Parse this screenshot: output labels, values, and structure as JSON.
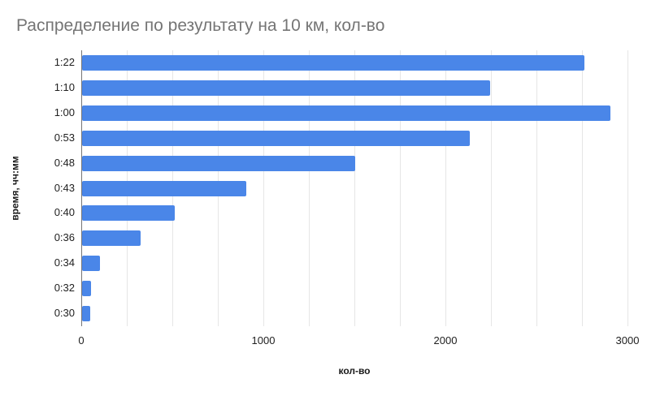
{
  "chart_data": {
    "type": "bar",
    "orientation": "horizontal",
    "title": "Распределение по результату на 10 км, кол-во",
    "xlabel": "кол-во",
    "ylabel": "время, чч:мм",
    "categories": [
      "1:22",
      "1:10",
      "1:00",
      "0:53",
      "0:48",
      "0:43",
      "0:40",
      "0:36",
      "0:34",
      "0:32",
      "0:30"
    ],
    "values": [
      2760,
      2240,
      2900,
      2130,
      1500,
      900,
      510,
      320,
      100,
      50,
      45
    ],
    "xlim": [
      0,
      3000
    ],
    "x_tick_labels": [
      "0",
      "1000",
      "2000",
      "3000"
    ],
    "x_tick_values": [
      0,
      1000,
      2000,
      3000
    ],
    "minor_grid_step": 250,
    "grid": true,
    "legend": "none",
    "colors": {
      "bar": "#4a86e8",
      "grid": "#e6e6e6",
      "baseline": "#757575",
      "title": "#757575",
      "tick_label": "#212121",
      "axis_label": "#1a1a1a",
      "background": "#ffffff"
    }
  }
}
